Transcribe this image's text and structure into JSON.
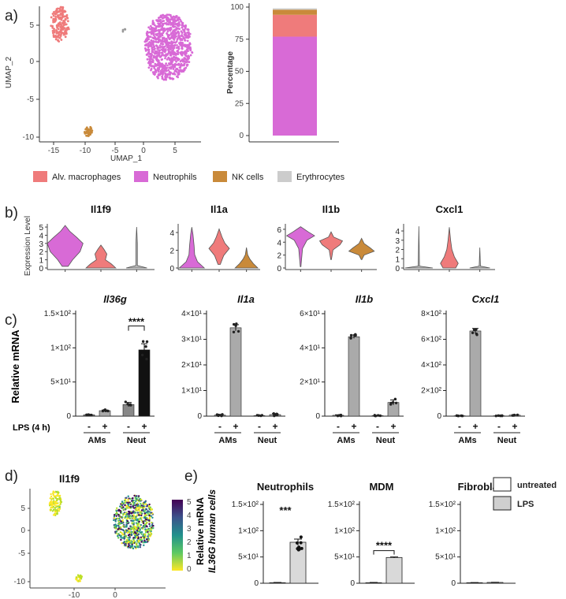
{
  "panel_labels": [
    "a)",
    "b)",
    "c)",
    "d)",
    "e)"
  ],
  "colors": {
    "alv_macrophages": "#ef7b7b",
    "neutrophils": "#d86ad6",
    "nk_cells": "#c98a3a",
    "erythrocytes": "#cccccc",
    "lps_bar": "#aaaaaa",
    "neut_lps_bar": "#111111"
  },
  "panel_a": {
    "umap": {
      "xlabel": "UMAP_1",
      "ylabel": "UMAP_2",
      "x_ticks": [
        "-15",
        "-10",
        "-5",
        "0",
        "5"
      ],
      "y_ticks": [
        "5",
        "0",
        "-5",
        "-10"
      ]
    },
    "bar": {
      "ylabel": "Percentage",
      "y_ticks": [
        "100",
        "75",
        "50",
        "25",
        "0"
      ]
    },
    "legend": [
      "Alv. macrophages",
      "Neutrophils",
      "NK cells",
      "Erythrocytes"
    ]
  },
  "panel_b": {
    "ylabel": "Expression Level",
    "titles": [
      "Il1f9",
      "Il1a",
      "Il1b",
      "Cxcl1"
    ],
    "y_ticks": [
      [
        "5",
        "4",
        "3",
        "2",
        "1",
        "0"
      ],
      [
        "4",
        "2",
        "0"
      ],
      [
        "6",
        "4",
        "2",
        "0"
      ],
      [
        "4",
        "3",
        "2",
        "1",
        "0"
      ]
    ]
  },
  "panel_c": {
    "ylabel": "Relative mRNA",
    "lps_label": "LPS (4 h)",
    "titles": [
      "Il36g",
      "Il1a",
      "Il1b",
      "Cxcl1"
    ],
    "y_ticks": [
      [
        "1.5×10²",
        "1×10²",
        "5×10¹",
        "0"
      ],
      [
        "4×10¹",
        "3×10¹",
        "2×10¹",
        "1×10¹",
        "0"
      ],
      [
        "6×10¹",
        "4×10¹",
        "2×10¹",
        "0"
      ],
      [
        "8×10²",
        "6×10²",
        "4×10²",
        "2×10²",
        "0"
      ]
    ],
    "signs": [
      "-",
      "+",
      "-",
      "+"
    ],
    "groups": [
      "AMs",
      "Neut"
    ],
    "significance": "****"
  },
  "panel_d": {
    "title": "Il1f9",
    "x_ticks": [
      "-10",
      "0"
    ],
    "y_ticks": [
      "5",
      "0",
      "-5",
      "-10"
    ],
    "colorbar_ticks": [
      "5",
      "4",
      "3",
      "2",
      "1",
      "0"
    ]
  },
  "panel_e": {
    "ylabel_line1": "Relative mRNA",
    "ylabel_line2": "IL36G human cells",
    "titles": [
      "Neutrophils",
      "MDM",
      "Fibroblast"
    ],
    "y_ticks": [
      "1.5×10²",
      "1×10²",
      "5×10¹",
      "0"
    ],
    "significance": [
      "***",
      "****"
    ],
    "legend": [
      "untreated",
      "LPS"
    ]
  },
  "chart_data": [
    {
      "panel": "a-bar",
      "type": "bar",
      "ylabel": "Percentage",
      "ylim": [
        0,
        100
      ],
      "stacked": true,
      "series": [
        {
          "name": "Neutrophils",
          "values": [
            77
          ]
        },
        {
          "name": "Alv. macrophages",
          "values": [
            17
          ]
        },
        {
          "name": "NK cells",
          "values": [
            4
          ]
        },
        {
          "name": "Erythrocytes",
          "values": [
            1
          ]
        }
      ]
    },
    {
      "panel": "c-Il36g",
      "type": "bar",
      "ylim": [
        0,
        150
      ],
      "categories": [
        "AMs -",
        "AMs +",
        "Neut -",
        "Neut +"
      ],
      "values": [
        2,
        8,
        17,
        97
      ],
      "errors": [
        0.5,
        1,
        3,
        9
      ]
    },
    {
      "panel": "c-Il1a",
      "type": "bar",
      "ylim": [
        0,
        40
      ],
      "categories": [
        "AMs -",
        "AMs +",
        "Neut -",
        "Neut +"
      ],
      "values": [
        0.4,
        34.5,
        0.2,
        0.6
      ],
      "errors": [
        0.3,
        1.2,
        0.1,
        0.4
      ]
    },
    {
      "panel": "c-Il1b",
      "type": "bar",
      "ylim": [
        0,
        60
      ],
      "categories": [
        "AMs -",
        "AMs +",
        "Neut -",
        "Neut +"
      ],
      "values": [
        0.5,
        46.5,
        0.3,
        8
      ],
      "errors": [
        0.3,
        1,
        0.2,
        1.5
      ]
    },
    {
      "panel": "c-Cxcl1",
      "type": "bar",
      "ylim": [
        0,
        800
      ],
      "categories": [
        "AMs -",
        "AMs +",
        "Neut -",
        "Neut +"
      ],
      "values": [
        3,
        665,
        3,
        8
      ],
      "errors": [
        1,
        20,
        1,
        2
      ]
    },
    {
      "panel": "e-Neutrophils",
      "type": "bar",
      "ylim": [
        0,
        150
      ],
      "categories": [
        "untreated",
        "LPS"
      ],
      "values": [
        1,
        78
      ],
      "errors": [
        0.5,
        6
      ]
    },
    {
      "panel": "e-MDM",
      "type": "bar",
      "ylim": [
        0,
        150
      ],
      "categories": [
        "untreated",
        "LPS"
      ],
      "values": [
        1,
        49
      ],
      "errors": [
        0.5,
        1
      ]
    },
    {
      "panel": "e-Fibroblast",
      "type": "bar",
      "ylim": [
        0,
        150
      ],
      "categories": [
        "untreated",
        "LPS"
      ],
      "values": [
        1,
        1.5
      ],
      "errors": [
        0.3,
        0.3
      ]
    }
  ]
}
